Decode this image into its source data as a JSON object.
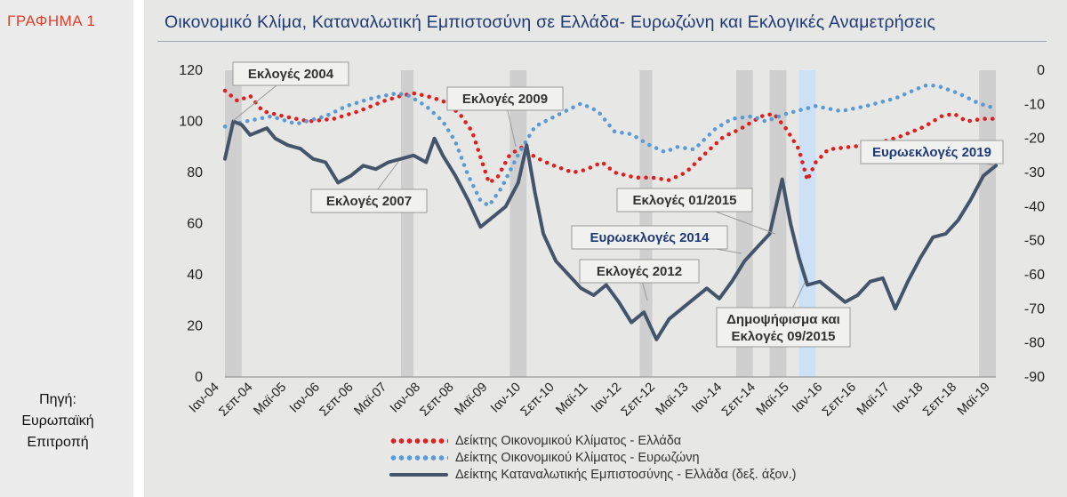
{
  "sidebar": {
    "label": "ΓΡΑΦΗΜΑ 1",
    "source_lines": [
      "Πηγή:",
      "Ευρωπαϊκή",
      "Επιτροπή"
    ]
  },
  "chart_data": {
    "type": "line",
    "title": "Οικονομικό Κλίμα, Καταναλωτική Εμπιστοσύνη σε Ελλάδα- Ευρωζώνη και Εκλογικές Αναμετρήσεις",
    "x_tick_labels": [
      "Ιαν-04",
      "Σεπ-04",
      "Μαϊ-05",
      "Ιαν-06",
      "Σεπ-06",
      "Μαϊ-07",
      "Ιαν-08",
      "Σεπ-08",
      "Μαϊ-09",
      "Ιαν-10",
      "Σεπ-10",
      "Μαϊ-11",
      "Ιαν-12",
      "Σεπ-12",
      "Μαϊ-13",
      "Ιαν-14",
      "Σεπ-14",
      "Μαϊ-15",
      "Ιαν-16",
      "Σεπ-16",
      "Μαϊ-17",
      "Ιαν-18",
      "Σεπ-18",
      "Μαϊ-19"
    ],
    "x_range": [
      "2004-01",
      "2019-05"
    ],
    "y_left": {
      "min": 0,
      "max": 120,
      "ticks": [
        0,
        20,
        40,
        60,
        80,
        100,
        120
      ]
    },
    "y_right": {
      "min": -90,
      "max": 0,
      "ticks": [
        0,
        -10,
        -20,
        -30,
        -40,
        -50,
        -60,
        -70,
        -80,
        -90
      ]
    },
    "grid": false,
    "legend_position": "bottom",
    "series": [
      {
        "name": "Δείκτης Οικονομικού Κλίματος - Ελλάδα",
        "axis": "left",
        "style": "dotted",
        "color": "#e01e1e",
        "points": [
          [
            "2004-01",
            112
          ],
          [
            "2004-04",
            108
          ],
          [
            "2004-07",
            110
          ],
          [
            "2004-10",
            104
          ],
          [
            "2005-03",
            102
          ],
          [
            "2005-09",
            100
          ],
          [
            "2006-03",
            101
          ],
          [
            "2006-09",
            104
          ],
          [
            "2007-03",
            108
          ],
          [
            "2007-07",
            110
          ],
          [
            "2007-10",
            111
          ],
          [
            "2008-01",
            110
          ],
          [
            "2008-05",
            108
          ],
          [
            "2008-09",
            103
          ],
          [
            "2008-12",
            96
          ],
          [
            "2009-02",
            86
          ],
          [
            "2009-04",
            76
          ],
          [
            "2009-06",
            78
          ],
          [
            "2009-09",
            87
          ],
          [
            "2009-12",
            90
          ],
          [
            "2010-03",
            86
          ],
          [
            "2010-07",
            83
          ],
          [
            "2010-12",
            80
          ],
          [
            "2011-03",
            81
          ],
          [
            "2011-07",
            84
          ],
          [
            "2011-10",
            80
          ],
          [
            "2012-03",
            78
          ],
          [
            "2012-07",
            78
          ],
          [
            "2012-11",
            77
          ],
          [
            "2013-03",
            80
          ],
          [
            "2013-08",
            88
          ],
          [
            "2013-12",
            94
          ],
          [
            "2014-04",
            97
          ],
          [
            "2014-09",
            102
          ],
          [
            "2014-12",
            103
          ],
          [
            "2015-03",
            97
          ],
          [
            "2015-06",
            89
          ],
          [
            "2015-08",
            77
          ],
          [
            "2015-10",
            84
          ],
          [
            "2016-01",
            89
          ],
          [
            "2016-06",
            90
          ],
          [
            "2016-12",
            91
          ],
          [
            "2017-06",
            94
          ],
          [
            "2017-12",
            98
          ],
          [
            "2018-04",
            102
          ],
          [
            "2018-07",
            103
          ],
          [
            "2018-10",
            100
          ],
          [
            "2019-02",
            101
          ],
          [
            "2019-05",
            101
          ]
        ]
      },
      {
        "name": "Δείκτης Οικονομικού Κλίματος - Ευρωζώνη",
        "axis": "left",
        "style": "dotted",
        "color": "#5b9bd5",
        "points": [
          [
            "2004-01",
            98
          ],
          [
            "2004-06",
            100
          ],
          [
            "2004-12",
            102
          ],
          [
            "2005-06",
            99
          ],
          [
            "2006-01",
            102
          ],
          [
            "2006-06",
            106
          ],
          [
            "2006-12",
            109
          ],
          [
            "2007-06",
            111
          ],
          [
            "2007-09",
            110
          ],
          [
            "2008-01",
            106
          ],
          [
            "2008-05",
            100
          ],
          [
            "2008-08",
            92
          ],
          [
            "2008-11",
            79
          ],
          [
            "2009-02",
            69
          ],
          [
            "2009-04",
            67
          ],
          [
            "2009-07",
            74
          ],
          [
            "2009-11",
            87
          ],
          [
            "2010-03",
            98
          ],
          [
            "2010-09",
            103
          ],
          [
            "2011-02",
            107
          ],
          [
            "2011-06",
            104
          ],
          [
            "2011-10",
            96
          ],
          [
            "2012-02",
            95
          ],
          [
            "2012-06",
            91
          ],
          [
            "2012-10",
            88
          ],
          [
            "2013-01",
            90
          ],
          [
            "2013-05",
            89
          ],
          [
            "2013-10",
            97
          ],
          [
            "2014-02",
            101
          ],
          [
            "2014-07",
            102
          ],
          [
            "2014-10",
            100
          ],
          [
            "2015-03",
            103
          ],
          [
            "2015-10",
            106
          ],
          [
            "2016-04",
            104
          ],
          [
            "2016-10",
            106
          ],
          [
            "2017-05",
            109
          ],
          [
            "2017-12",
            114
          ],
          [
            "2018-03",
            114
          ],
          [
            "2018-08",
            111
          ],
          [
            "2019-01",
            107
          ],
          [
            "2019-05",
            105
          ]
        ]
      },
      {
        "name": "Δείκτης Καταναλωτικής Εμπιστοσύνης - Ελλάδα (δεξ. άξον.)",
        "axis": "right",
        "style": "solid",
        "color": "#44546a",
        "points": [
          [
            "2004-01",
            -26
          ],
          [
            "2004-03",
            -15
          ],
          [
            "2004-05",
            -16
          ],
          [
            "2004-07",
            -19
          ],
          [
            "2004-09",
            -18
          ],
          [
            "2004-11",
            -17
          ],
          [
            "2005-01",
            -20
          ],
          [
            "2005-04",
            -22
          ],
          [
            "2005-07",
            -23
          ],
          [
            "2005-10",
            -26
          ],
          [
            "2006-01",
            -27
          ],
          [
            "2006-04",
            -33
          ],
          [
            "2006-07",
            -31
          ],
          [
            "2006-10",
            -28
          ],
          [
            "2007-01",
            -29
          ],
          [
            "2007-04",
            -27
          ],
          [
            "2007-07",
            -26
          ],
          [
            "2007-10",
            -25
          ],
          [
            "2008-01",
            -27
          ],
          [
            "2008-03",
            -20
          ],
          [
            "2008-05",
            -25
          ],
          [
            "2008-08",
            -31
          ],
          [
            "2008-11",
            -38
          ],
          [
            "2009-02",
            -46
          ],
          [
            "2009-05",
            -43
          ],
          [
            "2009-08",
            -40
          ],
          [
            "2009-11",
            -33
          ],
          [
            "2010-01",
            -22
          ],
          [
            "2010-03",
            -36
          ],
          [
            "2010-05",
            -48
          ],
          [
            "2010-08",
            -56
          ],
          [
            "2010-11",
            -60
          ],
          [
            "2011-02",
            -64
          ],
          [
            "2011-05",
            -66
          ],
          [
            "2011-08",
            -63
          ],
          [
            "2011-11",
            -68
          ],
          [
            "2012-02",
            -74
          ],
          [
            "2012-05",
            -71
          ],
          [
            "2012-08",
            -79
          ],
          [
            "2012-11",
            -73
          ],
          [
            "2013-02",
            -70
          ],
          [
            "2013-05",
            -67
          ],
          [
            "2013-08",
            -64
          ],
          [
            "2013-11",
            -67
          ],
          [
            "2014-02",
            -62
          ],
          [
            "2014-05",
            -56
          ],
          [
            "2014-08",
            -52
          ],
          [
            "2014-11",
            -48
          ],
          [
            "2015-02",
            -32
          ],
          [
            "2015-04",
            -45
          ],
          [
            "2015-06",
            -55
          ],
          [
            "2015-08",
            -63
          ],
          [
            "2015-11",
            -62
          ],
          [
            "2016-02",
            -65
          ],
          [
            "2016-05",
            -68
          ],
          [
            "2016-08",
            -66
          ],
          [
            "2016-11",
            -62
          ],
          [
            "2017-02",
            -61
          ],
          [
            "2017-05",
            -70
          ],
          [
            "2017-08",
            -62
          ],
          [
            "2017-11",
            -55
          ],
          [
            "2018-02",
            -49
          ],
          [
            "2018-05",
            -48
          ],
          [
            "2018-08",
            -44
          ],
          [
            "2018-11",
            -38
          ],
          [
            "2019-02",
            -31
          ],
          [
            "2019-05",
            -28
          ]
        ]
      }
    ],
    "shaded_periods": [
      {
        "from": "2004-01",
        "to": "2004-05",
        "color": "#cfcfcf"
      },
      {
        "from": "2007-07",
        "to": "2007-10",
        "color": "#cfcfcf"
      },
      {
        "from": "2009-09",
        "to": "2010-01",
        "color": "#cfcfcf"
      },
      {
        "from": "2012-04",
        "to": "2012-07",
        "color": "#cfcfcf"
      },
      {
        "from": "2014-03",
        "to": "2014-07",
        "color": "#cfcfcf"
      },
      {
        "from": "2014-11",
        "to": "2015-03",
        "color": "#cfcfcf"
      },
      {
        "from": "2015-06",
        "to": "2015-10",
        "color": "#cde0f5"
      },
      {
        "from": "2019-01",
        "to": "2019-05",
        "color": "#cfcfcf"
      }
    ],
    "annotations": [
      {
        "text": "Εκλογές 2004",
        "color": "#333333",
        "at": [
          "2004-03",
          100
        ]
      },
      {
        "text": "Εκλογές 2007",
        "color": "#333333",
        "at": [
          "2007-09",
          82
        ]
      },
      {
        "text": "Εκλογές 2009",
        "color": "#333333",
        "at": [
          "2009-10",
          88
        ]
      },
      {
        "text": "Εκλογές 01/2015",
        "color": "#333333",
        "at": [
          "2015-01",
          55
        ]
      },
      {
        "text": "Ευρωεκλογές 2014",
        "color": "#1f3a78",
        "at": [
          "2014-05",
          46
        ]
      },
      {
        "text": "Εκλογές 2012",
        "color": "#333333",
        "at": [
          "2012-06",
          28
        ]
      },
      {
        "text": "Δημοψήφισμα και",
        "text2": "Εκλογές 09/2015",
        "color": "#333333",
        "at": [
          "2015-09",
          33
        ]
      },
      {
        "text": "Ευρωεκλογές 2019",
        "color": "#1f3a78",
        "at": [
          "2019-05",
          82
        ]
      }
    ]
  }
}
